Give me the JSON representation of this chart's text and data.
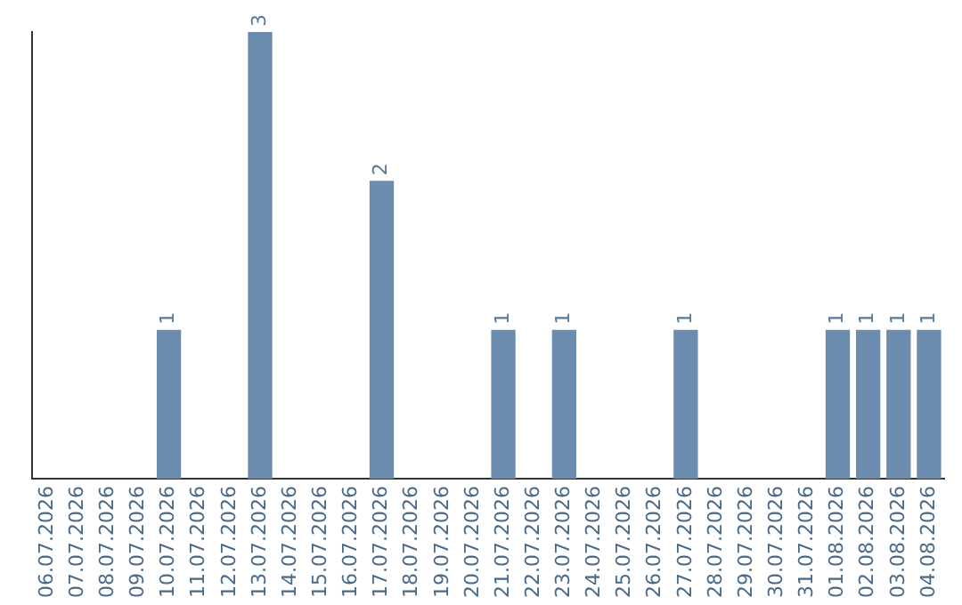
{
  "chart_data": {
    "type": "bar",
    "categories": [
      "06.07.2026",
      "07.07.2026",
      "08.07.2026",
      "09.07.2026",
      "10.07.2026",
      "11.07.2026",
      "12.07.2026",
      "13.07.2026",
      "14.07.2026",
      "15.07.2026",
      "16.07.2026",
      "17.07.2026",
      "18.07.2026",
      "19.07.2026",
      "20.07.2026",
      "21.07.2026",
      "22.07.2026",
      "23.07.2026",
      "24.07.2026",
      "25.07.2026",
      "26.07.2026",
      "27.07.2026",
      "28.07.2026",
      "29.07.2026",
      "30.07.2026",
      "31.07.2026",
      "01.08.2026",
      "02.08.2026",
      "03.08.2026",
      "04.08.2026"
    ],
    "values": [
      0,
      0,
      0,
      0,
      1,
      0,
      0,
      3,
      0,
      0,
      0,
      2,
      0,
      0,
      0,
      1,
      0,
      1,
      0,
      0,
      0,
      1,
      0,
      0,
      0,
      0,
      1,
      1,
      1,
      1
    ],
    "value_labels": [
      null,
      null,
      null,
      null,
      "1",
      null,
      null,
      "3",
      null,
      null,
      null,
      "2",
      null,
      null,
      null,
      "1",
      null,
      "1",
      null,
      null,
      null,
      "1",
      null,
      null,
      null,
      null,
      "1",
      "1",
      "1",
      "1"
    ],
    "color": "#6b8cae",
    "tick_labels": "x",
    "grid": false,
    "legend": false
  }
}
